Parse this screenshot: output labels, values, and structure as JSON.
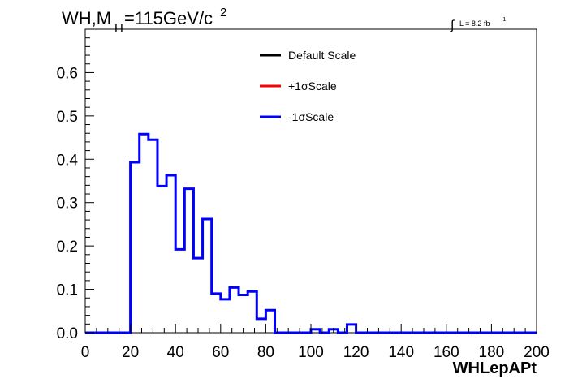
{
  "chart_data": {
    "type": "histogram",
    "title_main": "WH,M",
    "title_sub": "H",
    "title_rest": "=115GeV/c",
    "title_sup": "2",
    "lumi_integral": "∫",
    "lumi_text": "L = 8.2 fb",
    "lumi_sup": "-1",
    "xlabel": "WHLepAPt",
    "xlim": [
      0,
      200
    ],
    "ylim": [
      0,
      0.7
    ],
    "x_ticks": [
      0,
      20,
      40,
      60,
      80,
      100,
      120,
      140,
      160,
      180,
      200
    ],
    "x_tick_labels": [
      "0",
      "20",
      "40",
      "60",
      "80",
      "100",
      "120",
      "140",
      "160",
      "180",
      "200"
    ],
    "y_ticks": [
      0.0,
      0.1,
      0.2,
      0.3,
      0.4,
      0.5,
      0.6
    ],
    "y_tick_labels": [
      "0.0",
      "0.1",
      "0.2",
      "0.3",
      "0.4",
      "0.5",
      "0.6"
    ],
    "bin_width": 4,
    "bin_edges_start": 0,
    "legend": [
      {
        "label": "Default Scale",
        "color": "#000000"
      },
      {
        "label": "+1σScale",
        "color": "#ff0000"
      },
      {
        "label": "-1σScale",
        "color": "#0000ff"
      }
    ],
    "series": [
      {
        "color": "#0000ff",
        "values": [
          0,
          0,
          0,
          0,
          0,
          0.393,
          0.458,
          0.445,
          0.338,
          0.363,
          0.192,
          0.332,
          0.172,
          0.262,
          0.09,
          0.077,
          0.104,
          0.087,
          0.095,
          0.032,
          0.052,
          0,
          0,
          0,
          0,
          0.008,
          0,
          0.008,
          0,
          0.019,
          0,
          0,
          0,
          0,
          0,
          0,
          0,
          0,
          0,
          0,
          0,
          0,
          0,
          0,
          0,
          0,
          0,
          0,
          0,
          0
        ]
      }
    ]
  }
}
